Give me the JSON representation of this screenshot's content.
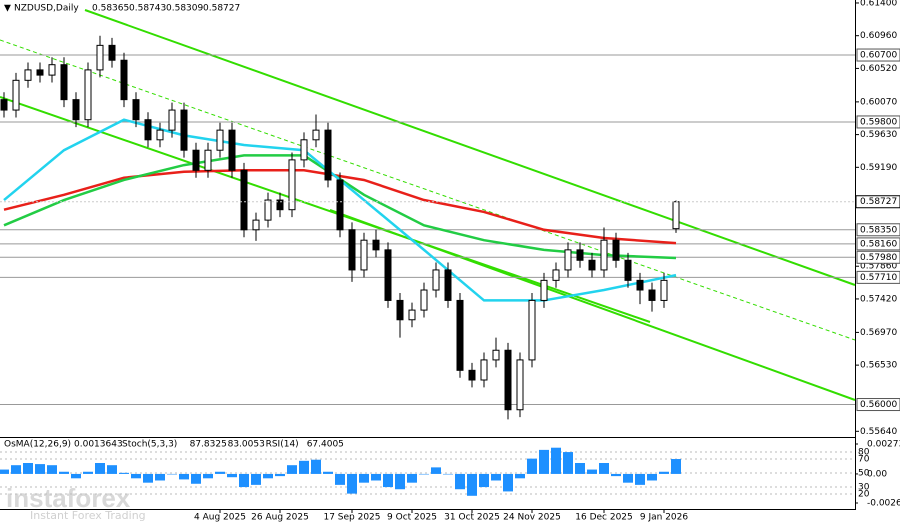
{
  "chart_data": [
    {
      "type": "candlestick",
      "title": "NZDUSD,Daily",
      "ohlc": [
        0.58365,
        0.58743,
        0.58309,
        0.58727
      ],
      "annotations": [
        "instaforex",
        "Instant Forex Trading"
      ],
      "categories": [
        null,
        null,
        null,
        null,
        null,
        null,
        null,
        null,
        null,
        null,
        null,
        null,
        null,
        null,
        null,
        null,
        null,
        null,
        "4 Aug 2025",
        null,
        null,
        null,
        null,
        "26 Aug 2025",
        null,
        null,
        null,
        null,
        null,
        "17 Sep 2025",
        null,
        null,
        null,
        null,
        "9 Oct 2025",
        null,
        null,
        null,
        null,
        "31 Oct 2025",
        null,
        null,
        null,
        null,
        "24 Nov 2025",
        null,
        null,
        null,
        null,
        null,
        "16 Dec 2025",
        null,
        null,
        null,
        null,
        "9 Jan 2026",
        null
      ],
      "open": [
        0.601,
        0.5996,
        0.6036,
        0.605,
        0.6043,
        0.6057,
        0.601,
        0.5983,
        0.605,
        0.6083,
        0.6063,
        0.601,
        0.5983,
        0.5956,
        0.5969,
        0.5996,
        0.5942,
        0.5915,
        0.5942,
        0.5969,
        0.5915,
        0.5835,
        0.5848,
        0.5875,
        0.5862,
        0.5929,
        0.5956,
        0.5969,
        0.5902,
        0.5835,
        0.5781,
        0.5821,
        0.5808,
        0.574,
        0.5714,
        0.5727,
        0.5754,
        0.5781,
        0.574,
        0.5646,
        0.5633,
        0.566,
        0.5673,
        0.5593,
        0.566,
        0.574,
        0.5767,
        0.5781,
        0.5808,
        0.5794,
        0.5781,
        0.5821,
        0.5794,
        0.5767,
        0.5754,
        0.574,
        0.58365
      ],
      "high": [
        0.602,
        0.6046,
        0.606,
        0.606,
        0.6067,
        0.6067,
        0.602,
        0.606,
        0.6096,
        0.6093,
        0.6073,
        0.602,
        0.5993,
        0.5979,
        0.6006,
        0.6006,
        0.5952,
        0.5952,
        0.5979,
        0.5979,
        0.5925,
        0.5858,
        0.5885,
        0.5885,
        0.5939,
        0.5966,
        0.599,
        0.5979,
        0.5912,
        0.5845,
        0.5831,
        0.5835,
        0.5818,
        0.575,
        0.5737,
        0.5764,
        0.5791,
        0.5791,
        0.575,
        0.5656,
        0.567,
        0.569,
        0.5683,
        0.567,
        0.575,
        0.5777,
        0.5791,
        0.5818,
        0.5818,
        0.5804,
        0.5838,
        0.5831,
        0.5804,
        0.5777,
        0.5764,
        0.5777,
        0.58743
      ],
      "low": [
        0.5986,
        0.5986,
        0.6026,
        0.6033,
        0.6033,
        0.6,
        0.5973,
        0.5973,
        0.604,
        0.6053,
        0.6,
        0.5973,
        0.5946,
        0.5946,
        0.5959,
        0.5932,
        0.5905,
        0.5905,
        0.5932,
        0.5905,
        0.5825,
        0.582,
        0.5838,
        0.5852,
        0.5852,
        0.5919,
        0.5946,
        0.5892,
        0.5825,
        0.5765,
        0.5771,
        0.5798,
        0.573,
        0.569,
        0.5704,
        0.5717,
        0.5744,
        0.573,
        0.5636,
        0.5623,
        0.5623,
        0.565,
        0.558,
        0.5583,
        0.565,
        0.573,
        0.5757,
        0.5771,
        0.5784,
        0.5771,
        0.5771,
        0.5784,
        0.5757,
        0.5735,
        0.5725,
        0.573,
        0.58309
      ],
      "close": [
        0.5996,
        0.6036,
        0.605,
        0.6043,
        0.6057,
        0.601,
        0.5983,
        0.605,
        0.6083,
        0.6063,
        0.601,
        0.5983,
        0.5956,
        0.5969,
        0.5996,
        0.5942,
        0.5915,
        0.5942,
        0.5969,
        0.5915,
        0.5835,
        0.5848,
        0.5875,
        0.5862,
        0.5929,
        0.5956,
        0.5969,
        0.5902,
        0.5835,
        0.5781,
        0.5821,
        0.5808,
        0.574,
        0.5714,
        0.5727,
        0.5754,
        0.5781,
        0.574,
        0.5646,
        0.5633,
        0.566,
        0.5673,
        0.5593,
        0.566,
        0.574,
        0.5767,
        0.5781,
        0.5808,
        0.5794,
        0.5781,
        0.5821,
        0.5794,
        0.5767,
        0.5754,
        0.574,
        0.5767,
        0.58727
      ],
      "series": [
        {
          "color": "#e8201a",
          "x": [
            0,
            5,
            10,
            15,
            20,
            25,
            30,
            35,
            40,
            45,
            50,
            56
          ],
          "values": [
            0.5862,
            0.5882,
            0.5905,
            0.5913,
            0.5915,
            0.5915,
            0.5902,
            0.5875,
            0.5859,
            0.5835,
            0.5824,
            0.5817
          ]
        },
        {
          "color": "#22cc44",
          "x": [
            0,
            5,
            10,
            15,
            20,
            25,
            30,
            35,
            40,
            45,
            50,
            56
          ],
          "values": [
            0.5841,
            0.5875,
            0.5902,
            0.5922,
            0.5935,
            0.5935,
            0.5882,
            0.5841,
            0.5821,
            0.5808,
            0.5801,
            0.5797
          ]
        },
        {
          "color": "#22d3ee",
          "x": [
            0,
            5,
            10,
            15,
            20,
            25,
            30,
            35,
            40,
            45,
            50,
            56
          ],
          "values": [
            0.5875,
            0.5942,
            0.5983,
            0.5962,
            0.5949,
            0.5942,
            0.5875,
            0.5808,
            0.574,
            0.574,
            0.5754,
            0.5774
          ]
        }
      ],
      "ylim": [
        0.5555,
        0.6144
      ],
      "yticks": [
        {
          "value": 0.614,
          "label": "0.61400"
        },
        {
          "value": 0.6096,
          "label": "0.60960"
        },
        {
          "value": 0.6052,
          "label": "0.60520"
        },
        {
          "value": 0.6007,
          "label": "0.60070"
        },
        {
          "value": 0.5963,
          "label": "0.59630"
        },
        {
          "value": 0.5919,
          "label": "0.59190"
        },
        {
          "value": 0.5786,
          "label": "0.57860"
        },
        {
          "value": 0.5742,
          "label": "0.57420"
        },
        {
          "value": 0.5697,
          "label": "0.56970"
        },
        {
          "value": 0.5653,
          "label": "0.56530"
        },
        {
          "value": 0.5564,
          "label": "0.55640"
        }
      ],
      "levels": [
        {
          "value": 0.607,
          "label": "0.60700"
        },
        {
          "value": 0.598,
          "label": "0.59800"
        },
        {
          "value": 0.5835,
          "label": "0.58350"
        },
        {
          "value": 0.5816,
          "label": "0.58160"
        },
        {
          "value": 0.5798,
          "label": "0.57980"
        },
        {
          "value": 0.5771,
          "label": "0.57710"
        },
        {
          "value": 0.56,
          "label": "0.56000"
        }
      ]
    },
    {
      "type": "bar",
      "title": "OsMA(12,26,9)",
      "color": "#1e90ff",
      "indicators": [
        {
          "name": "Stoch(5,3,3)",
          "values": [
            87.8325,
            83.0053
          ]
        },
        {
          "name": "RSI(14)",
          "values": [
            67.4005
          ]
        }
      ],
      "values": [
        0.0004,
        0.0008,
        0.001,
        0.0009,
        0.0008,
        0.0002,
        -0.0004,
        0.0002,
        0.001,
        0.0008,
        0.0001,
        -0.0004,
        -0.0008,
        -0.0006,
        0,
        -0.0005,
        -0.0009,
        -0.0004,
        0.0002,
        -0.0003,
        -0.0012,
        -0.001,
        -0.0004,
        -0.0002,
        0.0008,
        0.0012,
        0.0013,
        0.0002,
        -0.001,
        -0.0018,
        -0.0008,
        -0.0006,
        -0.0012,
        -0.0014,
        -0.0008,
        0,
        0.0006,
        0,
        -0.0014,
        -0.002,
        -0.0012,
        -0.0006,
        -0.0016,
        -0.0004,
        0.0014,
        0.0022,
        0.0024,
        0.002,
        0.001,
        0.0004,
        0.001,
        -0.0002,
        -0.0008,
        -0.001,
        -0.0006,
        0.0002,
        0.0013643
      ],
      "ylim": [
        -0.002659,
        0.0027386
      ],
      "yticks": [
        0.0027386,
        {
          "value": 0,
          "label": "0.00"
        },
        -0.002659
      ],
      "y2lim": [
        0,
        100
      ],
      "y2ticks": [
        80,
        70,
        50,
        30,
        20
      ]
    }
  ]
}
